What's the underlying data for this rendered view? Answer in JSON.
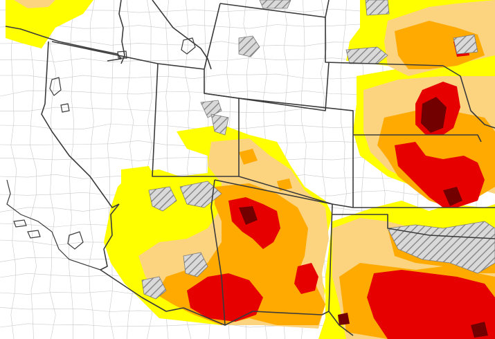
{
  "map": {
    "colors": {
      "background": "#ffffff",
      "d0_abnormally_dry": "#ffff00",
      "d1_moderate": "#fcd37f",
      "d2_severe": "#ffaa00",
      "d3_extreme": "#e60000",
      "d4_exceptional": "#730000",
      "hatch_pattern": "#9a9a9a",
      "state_border": "#3a3a3a",
      "county_border": "#c9c9c9"
    },
    "legend": null
  }
}
